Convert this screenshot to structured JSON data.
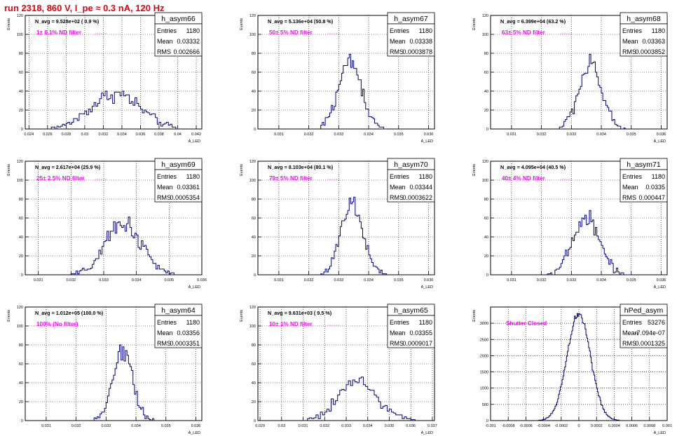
{
  "page": {
    "title": "run 2318,   860 V, I_pe ≈ 0.3 nA, 120 Hz"
  },
  "colors": {
    "title": "#e8000b",
    "histogram_line": "#000080",
    "annotation": "#ff00ff",
    "stats_text": "#000000"
  },
  "chart_data": [
    {
      "type": "bar",
      "title": "h_asym66",
      "xlabel": "A_LED",
      "ylabel": "Events",
      "xlim": [
        0.0236,
        0.0426
      ],
      "ylim": [
        0,
        120
      ],
      "xticks": [
        0.024,
        0.026,
        0.028,
        0.03,
        0.032,
        0.034,
        0.036,
        0.038,
        0.04,
        0.042
      ],
      "xtick_labels": [
        "0.024",
        "0.026",
        "0.028",
        "0.03",
        "0.032",
        "0.034",
        "0.036",
        "0.038",
        "0.04",
        "0.042"
      ],
      "yticks": [
        0,
        20,
        40,
        60,
        80,
        100,
        120
      ],
      "grid": true,
      "header": "N_avg = 9.528e+02 ( 0.9 %)",
      "annotation": "1± 0.1% ND filter",
      "stats": {
        "entries_label": "Entries",
        "entries": "1180",
        "mean_label": "Mean",
        "mean": "0.03332",
        "rms_label": "RMS",
        "rms": "0.002666"
      },
      "distribution": {
        "mean": 0.03332,
        "sigma": 0.002666,
        "total": 1180,
        "bin_width": 0.0002,
        "start": 0.0264,
        "stop": 0.0398,
        "max_observed": 40
      }
    },
    {
      "type": "bar",
      "title": "h_asym67",
      "xlabel": "A_LED",
      "ylabel": "Events",
      "xlim": [
        0.0303,
        0.0362
      ],
      "ylim": [
        0,
        120
      ],
      "xticks": [
        0.031,
        0.032,
        0.033,
        0.034,
        0.035,
        0.036
      ],
      "xtick_labels": [
        "0.031",
        "0.032",
        "0.033",
        "0.034",
        "0.035",
        "0.036"
      ],
      "yticks": [
        0,
        20,
        40,
        60,
        80,
        100,
        120
      ],
      "grid": true,
      "header": "N_avg = 5.136e+04 (50.8 %)",
      "annotation": "50± 5% ND filter",
      "stats": {
        "entries_label": "Entries",
        "entries": "1180",
        "mean_label": "Mean",
        "mean": "0.03338",
        "rms_label": "RMS",
        "rms": "0.0003878"
      },
      "distribution": {
        "mean": 0.03338,
        "sigma": 0.0003878,
        "total": 1180,
        "bin_width": 5e-05,
        "start": 0.0324,
        "stop": 0.0346,
        "max_observed": 79
      }
    },
    {
      "type": "bar",
      "title": "h_asym68",
      "xlabel": "A_LED",
      "ylabel": "Events",
      "xlim": [
        0.0303,
        0.0362
      ],
      "ylim": [
        0,
        120
      ],
      "xticks": [
        0.031,
        0.032,
        0.033,
        0.034,
        0.035,
        0.036
      ],
      "xtick_labels": [
        "0.031",
        "0.032",
        "0.033",
        "0.034",
        "0.035",
        "0.036"
      ],
      "yticks": [
        0,
        20,
        40,
        60,
        80,
        100,
        120
      ],
      "grid": true,
      "header": "N_avg = 6.399e+04 (63.2 %)",
      "annotation": "63± 5% ND filter",
      "stats": {
        "entries_label": "Entries",
        "entries": "1180",
        "mean_label": "Mean",
        "mean": "0.03363",
        "rms_label": "RMS",
        "rms": "0.0003852"
      },
      "distribution": {
        "mean": 0.03363,
        "sigma": 0.0003852,
        "total": 1180,
        "bin_width": 5e-05,
        "start": 0.0326,
        "stop": 0.0348,
        "max_observed": 79
      }
    },
    {
      "type": "bar",
      "title": "h_asym69",
      "xlabel": "A_LED",
      "ylabel": "Events",
      "xlim": [
        0.0306,
        0.036
      ],
      "ylim": [
        0,
        120
      ],
      "xticks": [
        0.031,
        0.032,
        0.033,
        0.034,
        0.035,
        0.036
      ],
      "xtick_labels": [
        "0.031",
        "0.032",
        "0.033",
        "0.034",
        "0.035",
        "0.036"
      ],
      "yticks": [
        0,
        20,
        40,
        60,
        80,
        100,
        120
      ],
      "grid": true,
      "header": "N_avg = 2.617e+04 (25.9 %)",
      "annotation": "25± 2.5% ND filter",
      "stats": {
        "entries_label": "Entries",
        "entries": "1180",
        "mean_label": "Mean",
        "mean": "0.03361",
        "rms_label": "RMS",
        "rms": "0.0005354"
      },
      "distribution": {
        "mean": 0.03361,
        "sigma": 0.0005354,
        "total": 1180,
        "bin_width": 5e-05,
        "start": 0.032,
        "stop": 0.0352,
        "max_observed": 61
      }
    },
    {
      "type": "bar",
      "title": "h_asym70",
      "xlabel": "A_LED",
      "ylabel": "Events",
      "xlim": [
        0.0303,
        0.0362
      ],
      "ylim": [
        0,
        120
      ],
      "xticks": [
        0.031,
        0.032,
        0.033,
        0.034,
        0.035,
        0.036
      ],
      "xtick_labels": [
        "0.031",
        "0.032",
        "0.033",
        "0.034",
        "0.035",
        "0.036"
      ],
      "yticks": [
        0,
        20,
        40,
        60,
        80,
        100,
        120
      ],
      "grid": true,
      "header": "N_avg = 8.103e+04 (80.1 %)",
      "annotation": "79± 5% ND filter",
      "stats": {
        "entries_label": "Entries",
        "entries": "1180",
        "mean_label": "Mean",
        "mean": "0.03344",
        "rms_label": "RMS",
        "rms": "0.0003622"
      },
      "distribution": {
        "mean": 0.03344,
        "sigma": 0.0003622,
        "total": 1180,
        "bin_width": 5e-05,
        "start": 0.0324,
        "stop": 0.0346,
        "max_observed": 82
      }
    },
    {
      "type": "bar",
      "title": "h_asym71",
      "xlabel": "A_LED",
      "ylabel": "Events",
      "xlim": [
        0.0303,
        0.0362
      ],
      "ylim": [
        0,
        120
      ],
      "xticks": [
        0.031,
        0.032,
        0.033,
        0.034,
        0.035,
        0.036
      ],
      "xtick_labels": [
        "0.031",
        "0.032",
        "0.033",
        "0.034",
        "0.035",
        "0.036"
      ],
      "yticks": [
        0,
        20,
        40,
        60,
        80,
        100,
        120
      ],
      "grid": true,
      "header": "N_avg = 4.095e+04 (40.5 %)",
      "annotation": "40± 4% ND filter",
      "stats": {
        "entries_label": "Entries",
        "entries": "1180",
        "mean_label": "Mean",
        "mean": "0.0335",
        "rms_label": "RMS",
        "rms": "0.000447"
      },
      "distribution": {
        "mean": 0.0335,
        "sigma": 0.000447,
        "total": 1180,
        "bin_width": 5e-05,
        "start": 0.0322,
        "stop": 0.035,
        "max_observed": 68
      }
    },
    {
      "type": "bar",
      "title": "h_asym64",
      "xlabel": "A_LED",
      "ylabel": "Events",
      "xlim": [
        0.0303,
        0.0362
      ],
      "ylim": [
        0,
        120
      ],
      "xticks": [
        0.031,
        0.032,
        0.033,
        0.034,
        0.035,
        0.036
      ],
      "xtick_labels": [
        "0.031",
        "0.032",
        "0.033",
        "0.034",
        "0.035",
        "0.036"
      ],
      "yticks": [
        0,
        20,
        40,
        60,
        80,
        100,
        120
      ],
      "grid": true,
      "header": "N_avg = 1.012e+05 (100.0 %)",
      "annotation": "100% (No filter)",
      "stats": {
        "entries_label": "Entries",
        "entries": "1180",
        "mean_label": "Mean",
        "mean": "0.03356",
        "rms_label": "RMS",
        "rms": "0.0003351"
      },
      "distribution": {
        "mean": 0.03356,
        "sigma": 0.0003351,
        "total": 1180,
        "bin_width": 5e-05,
        "start": 0.0326,
        "stop": 0.0346,
        "max_observed": 80
      }
    },
    {
      "type": "bar",
      "title": "h_asym65",
      "xlabel": "A_LED",
      "ylabel": "Events",
      "xlim": [
        0.0289,
        0.0371
      ],
      "ylim": [
        0,
        120
      ],
      "xticks": [
        0.029,
        0.03,
        0.031,
        0.032,
        0.033,
        0.034,
        0.035,
        0.036,
        0.037
      ],
      "xtick_labels": [
        "0.029",
        "0.03",
        "0.031",
        "0.032",
        "0.033",
        "0.034",
        "0.035",
        "0.036",
        "0.037"
      ],
      "yticks": [
        0,
        20,
        40,
        60,
        80,
        100,
        120
      ],
      "grid": true,
      "header": "N_avg = 9.631e+03 ( 9.5 %)",
      "annotation": "10± 1% ND filter",
      "stats": {
        "entries_label": "Entries",
        "entries": "1180",
        "mean_label": "Mean",
        "mean": "0.03355",
        "rms_label": "RMS",
        "rms": "0.0009017"
      },
      "distribution": {
        "mean": 0.03355,
        "sigma": 0.0009017,
        "total": 1180,
        "bin_width": 0.0001,
        "start": 0.0312,
        "stop": 0.0362,
        "max_observed": 46
      }
    },
    {
      "type": "bar",
      "title": "hPed_asym",
      "xlabel": "A_LED",
      "ylabel": "Events",
      "xlim": [
        -0.001,
        0.001
      ],
      "ylim": [
        0,
        3500
      ],
      "xticks": [
        -0.001,
        -0.0008,
        -0.0006,
        -0.0004,
        -0.0002,
        0,
        0.0002,
        0.0004,
        0.0006,
        0.0008,
        0.001
      ],
      "xtick_labels": [
        "-0.001",
        "-0.0008",
        "-0.0006",
        "-0.0004",
        "-0.0002",
        "0",
        "0.0002",
        "0.0004",
        "0.0006",
        "0.0008",
        "0.001"
      ],
      "yticks": [
        0,
        500,
        1000,
        1500,
        2000,
        2500,
        3000
      ],
      "grid": true,
      "header": "",
      "annotation": "Shutter Closed",
      "stats": {
        "entries_label": "Entries",
        "entries": "53276",
        "mean_label": "Mean",
        "mean": "-7.094e-07",
        "rms_label": "RMS",
        "rms": "0.0001325"
      },
      "distribution": {
        "mean": 0.0,
        "sigma": 0.0001325,
        "total": 53276,
        "bin_width": 1e-05,
        "start": -0.00046,
        "stop": 0.00046,
        "max_observed": 3300
      }
    }
  ]
}
